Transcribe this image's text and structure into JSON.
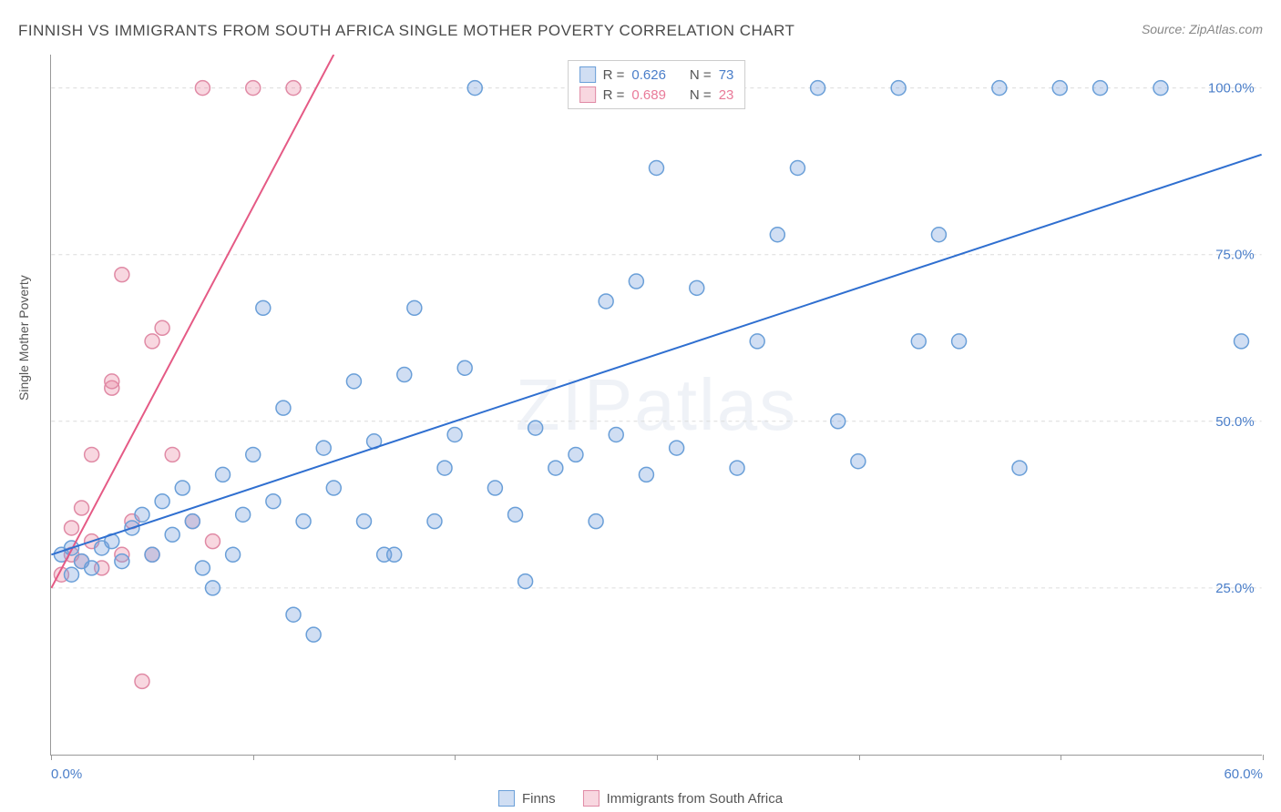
{
  "title": "FINNISH VS IMMIGRANTS FROM SOUTH AFRICA SINGLE MOTHER POVERTY CORRELATION CHART",
  "source": "Source: ZipAtlas.com",
  "ylabel": "Single Mother Poverty",
  "watermark": "ZIPatlas",
  "chart": {
    "type": "scatter",
    "xlim": [
      0,
      60
    ],
    "ylim": [
      0,
      105
    ],
    "xtick_positions": [
      0,
      10,
      20,
      30,
      40,
      50,
      60
    ],
    "xtick_labels": [
      "0.0%",
      "",
      "",
      "",
      "",
      "",
      "60.0%"
    ],
    "ytick_positions": [
      25,
      50,
      75,
      100
    ],
    "ytick_labels": [
      "25.0%",
      "50.0%",
      "75.0%",
      "100.0%"
    ],
    "grid_color": "#dcdcdc",
    "background_color": "#ffffff",
    "series": {
      "finns": {
        "label": "Finns",
        "color_fill": "rgba(120,160,220,0.35)",
        "color_stroke": "#6a9fd8",
        "marker_radius": 8,
        "line_color": "#2f6fd0",
        "line_width": 2,
        "r_value": "0.626",
        "n_value": "73",
        "trend": {
          "x1": 0,
          "y1": 30,
          "x2": 60,
          "y2": 90
        },
        "points": [
          [
            0.5,
            30
          ],
          [
            1,
            27
          ],
          [
            1.5,
            29
          ],
          [
            2,
            28
          ],
          [
            2.5,
            31
          ],
          [
            3,
            32
          ],
          [
            3.5,
            29
          ],
          [
            4,
            34
          ],
          [
            4.5,
            36
          ],
          [
            5,
            30
          ],
          [
            5.5,
            38
          ],
          [
            6,
            33
          ],
          [
            6.5,
            40
          ],
          [
            7,
            35
          ],
          [
            7.5,
            28
          ],
          [
            8,
            25
          ],
          [
            8.5,
            42
          ],
          [
            9,
            30
          ],
          [
            9.5,
            36
          ],
          [
            10,
            45
          ],
          [
            10.5,
            67
          ],
          [
            11,
            38
          ],
          [
            11.5,
            52
          ],
          [
            12,
            21
          ],
          [
            12.5,
            35
          ],
          [
            13,
            18
          ],
          [
            13.5,
            46
          ],
          [
            14,
            40
          ],
          [
            15,
            56
          ],
          [
            15.5,
            35
          ],
          [
            16,
            47
          ],
          [
            16.5,
            30
          ],
          [
            17,
            30
          ],
          [
            17.5,
            57
          ],
          [
            18,
            67
          ],
          [
            19,
            35
          ],
          [
            19.5,
            43
          ],
          [
            20,
            48
          ],
          [
            20.5,
            58
          ],
          [
            21,
            100
          ],
          [
            22,
            40
          ],
          [
            23,
            36
          ],
          [
            23.5,
            26
          ],
          [
            24,
            49
          ],
          [
            25,
            43
          ],
          [
            26,
            45
          ],
          [
            27,
            35
          ],
          [
            27.5,
            68
          ],
          [
            28,
            48
          ],
          [
            29,
            71
          ],
          [
            29.5,
            42
          ],
          [
            30,
            88
          ],
          [
            31,
            46
          ],
          [
            32,
            70
          ],
          [
            33,
            100
          ],
          [
            34,
            43
          ],
          [
            35,
            62
          ],
          [
            36,
            78
          ],
          [
            37,
            88
          ],
          [
            38,
            100
          ],
          [
            39,
            50
          ],
          [
            40,
            44
          ],
          [
            42,
            100
          ],
          [
            43,
            62
          ],
          [
            44,
            78
          ],
          [
            45,
            62
          ],
          [
            47,
            100
          ],
          [
            48,
            43
          ],
          [
            50,
            100
          ],
          [
            52,
            100
          ],
          [
            55,
            100
          ],
          [
            59,
            62
          ],
          [
            1,
            31
          ]
        ]
      },
      "immigrants": {
        "label": "Immigrants from South Africa",
        "color_fill": "rgba(235,140,165,0.35)",
        "color_stroke": "#e08aa5",
        "marker_radius": 8,
        "line_color": "#e55a85",
        "line_width": 2,
        "r_value": "0.689",
        "n_value": "23",
        "trend": {
          "x1": 0,
          "y1": 25,
          "x2": 14,
          "y2": 105
        },
        "points": [
          [
            0.5,
            27
          ],
          [
            1,
            30
          ],
          [
            1,
            34
          ],
          [
            1.5,
            29
          ],
          [
            1.5,
            37
          ],
          [
            2,
            32
          ],
          [
            2,
            45
          ],
          [
            2.5,
            28
          ],
          [
            3,
            55
          ],
          [
            3,
            56
          ],
          [
            3.5,
            30
          ],
          [
            3.5,
            72
          ],
          [
            4,
            35
          ],
          [
            4.5,
            11
          ],
          [
            5,
            30
          ],
          [
            5,
            62
          ],
          [
            5.5,
            64
          ],
          [
            6,
            45
          ],
          [
            7,
            35
          ],
          [
            7.5,
            100
          ],
          [
            8,
            32
          ],
          [
            10,
            100
          ],
          [
            12,
            100
          ]
        ]
      }
    }
  },
  "legend_top": {
    "r_label": "R =",
    "n_label": "N ="
  }
}
